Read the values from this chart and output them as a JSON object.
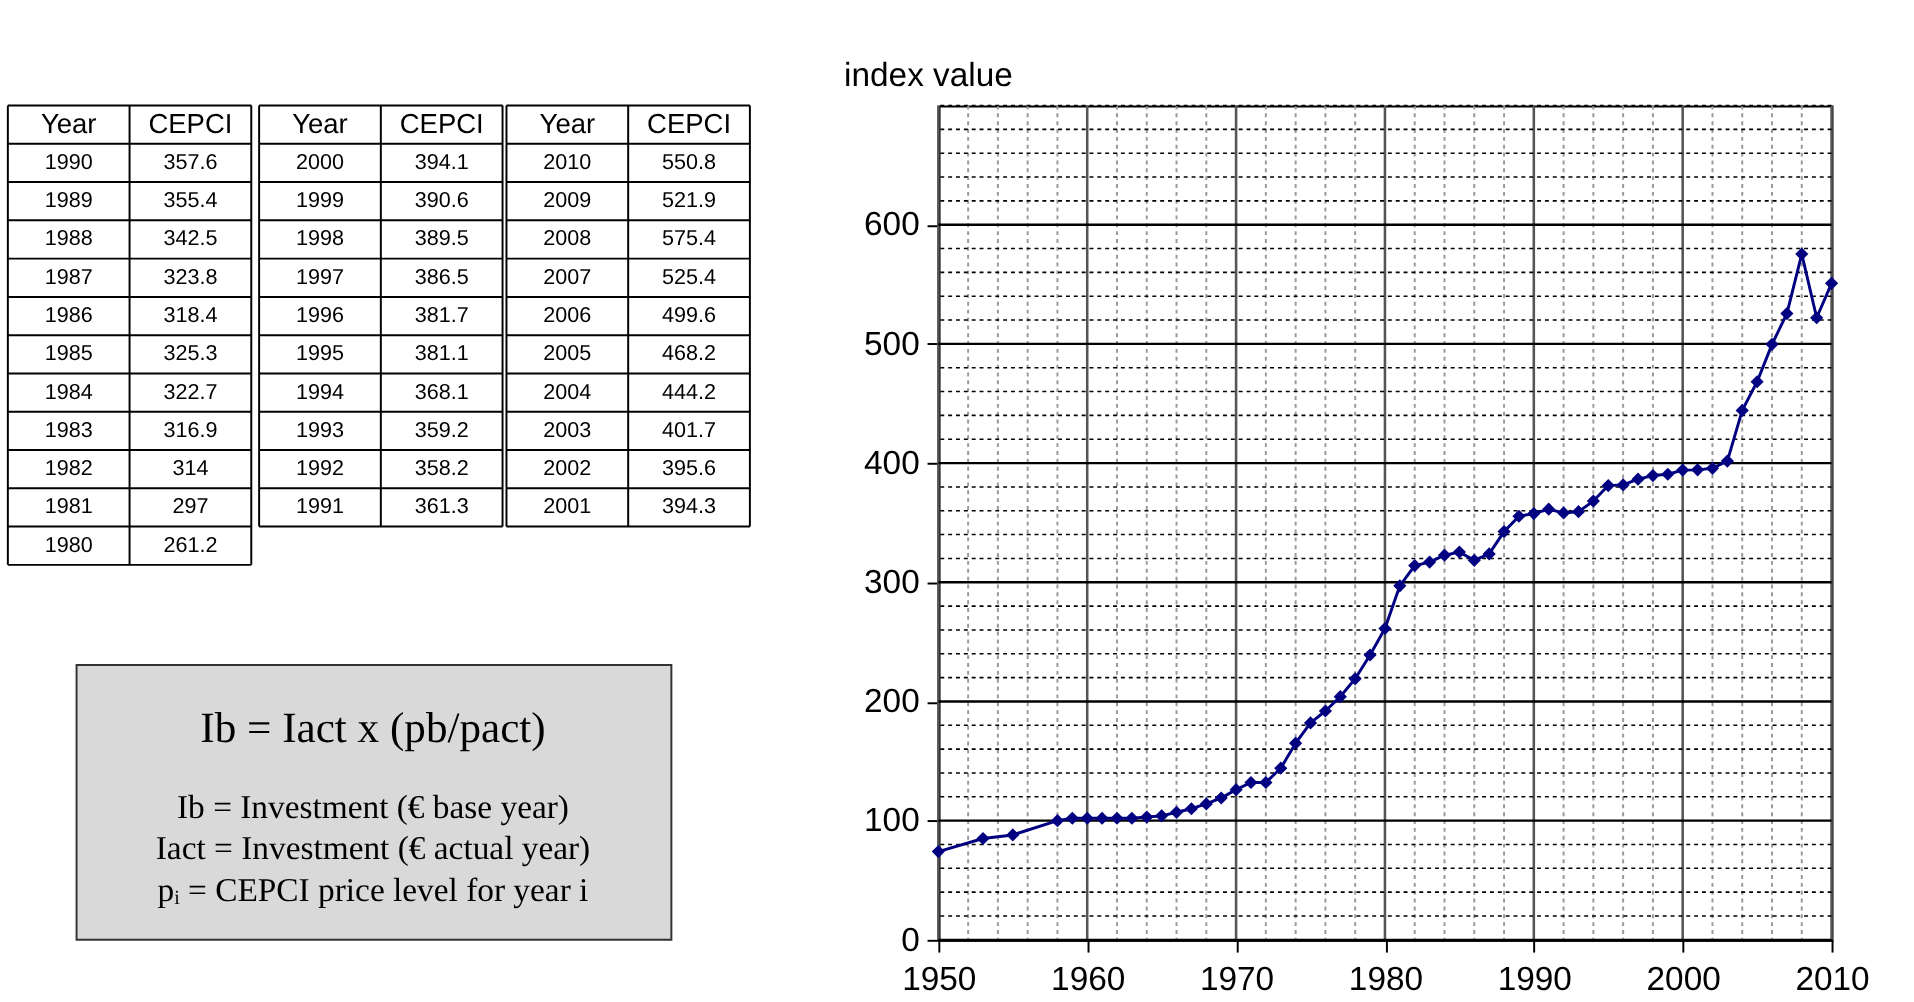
{
  "chart_data": {
    "type": "line",
    "ylabel": "index value",
    "x": [
      1950,
      1953,
      1955,
      1958,
      1959,
      1960,
      1961,
      1962,
      1963,
      1964,
      1965,
      1966,
      1967,
      1968,
      1969,
      1970,
      1971,
      1972,
      1973,
      1974,
      1975,
      1976,
      1977,
      1978,
      1979,
      1980,
      1981,
      1982,
      1983,
      1984,
      1985,
      1986,
      1987,
      1988,
      1989,
      1990,
      1991,
      1992,
      1993,
      1994,
      1995,
      1996,
      1997,
      1998,
      1999,
      2000,
      2001,
      2002,
      2003,
      2004,
      2005,
      2006,
      2007,
      2008,
      2009,
      2010
    ],
    "series": [
      {
        "color": "#000080",
        "values": [
          74,
          85,
          88,
          100,
          102,
          102,
          102,
          102,
          102,
          103,
          104,
          107,
          110,
          114,
          119,
          126,
          132,
          132,
          144,
          165,
          182,
          192,
          204,
          219,
          239,
          261.2,
          297,
          314,
          316.9,
          322.7,
          325.3,
          318.4,
          323.8,
          342.5,
          355.4,
          357.6,
          361.3,
          358.2,
          359.2,
          368.1,
          381.1,
          381.7,
          386.5,
          389.5,
          390.6,
          394.1,
          394.3,
          395.6,
          401.7,
          444.2,
          468.2,
          499.6,
          525.4,
          575.4,
          521.9,
          550.8
        ]
      }
    ],
    "xlim": [
      1950,
      2010
    ],
    "xticks": [
      1950,
      {
        "value": 1952,
        "label": null
      },
      {
        "value": 1954,
        "label": null
      },
      {
        "value": 1956,
        "label": null
      },
      {
        "value": 1958,
        "label": null
      },
      1960,
      {
        "value": 1962,
        "label": null
      },
      {
        "value": 1964,
        "label": null
      },
      {
        "value": 1966,
        "label": null
      },
      {
        "value": 1968,
        "label": null
      },
      1970,
      {
        "value": 1972,
        "label": null
      },
      {
        "value": 1974,
        "label": null
      },
      {
        "value": 1976,
        "label": null
      },
      {
        "value": 1978,
        "label": null
      },
      1980,
      {
        "value": 1982,
        "label": null
      },
      {
        "value": 1984,
        "label": null
      },
      {
        "value": 1986,
        "label": null
      },
      {
        "value": 1988,
        "label": null
      },
      1990,
      {
        "value": 1992,
        "label": null
      },
      {
        "value": 1994,
        "label": null
      },
      {
        "value": 1996,
        "label": null
      },
      {
        "value": 1998,
        "label": null
      },
      2000,
      {
        "value": 2002,
        "label": null
      },
      {
        "value": 2004,
        "label": null
      },
      {
        "value": 2006,
        "label": null
      },
      {
        "value": 2008,
        "label": null
      },
      2010
    ],
    "ylim": [
      0,
      700
    ],
    "yticks": [
      0,
      {
        "value": 20,
        "label": null
      },
      {
        "value": 40,
        "label": null
      },
      {
        "value": 60,
        "label": null
      },
      {
        "value": 80,
        "label": null
      },
      100,
      {
        "value": 120,
        "label": null
      },
      {
        "value": 140,
        "label": null
      },
      {
        "value": 160,
        "label": null
      },
      {
        "value": 180,
        "label": null
      },
      200,
      {
        "value": 220,
        "label": null
      },
      {
        "value": 240,
        "label": null
      },
      {
        "value": 260,
        "label": null
      },
      {
        "value": 280,
        "label": null
      },
      300,
      {
        "value": 320,
        "label": null
      },
      {
        "value": 340,
        "label": null
      },
      {
        "value": 360,
        "label": null
      },
      {
        "value": 380,
        "label": null
      },
      400,
      {
        "value": 420,
        "label": null
      },
      {
        "value": 440,
        "label": null
      },
      {
        "value": 460,
        "label": null
      },
      {
        "value": 480,
        "label": null
      },
      500,
      {
        "value": 520,
        "label": null
      },
      {
        "value": 540,
        "label": null
      },
      {
        "value": 560,
        "label": null
      },
      {
        "value": 580,
        "label": null
      },
      600,
      {
        "value": 620,
        "label": null
      },
      {
        "value": 640,
        "label": null
      },
      {
        "value": 660,
        "label": null
      },
      {
        "value": 680,
        "label": null
      },
      {
        "value": 700,
        "label": null
      }
    ],
    "grid": true,
    "marker": "diamond",
    "line_style": "solid",
    "annotations": [
      "Year",
      "CEPCI",
      "Year",
      "CEPCI",
      "Year",
      "CEPCI",
      "1990",
      "357.6",
      "1989",
      "355.4",
      "1988",
      "342.5",
      "1987",
      "323.8",
      "1986",
      "318.4",
      "1985",
      "325.3",
      "1984",
      "322.7",
      "1983",
      "316.9",
      "1982",
      "314",
      "1981",
      "297",
      "1980",
      "261.2",
      "2000",
      "394.1",
      "1999",
      "390.6",
      "1998",
      "389.5",
      "1997",
      "386.5",
      "1996",
      "381.7",
      "1995",
      "381.1",
      "1994",
      "368.1",
      "1993",
      "359.2",
      "1992",
      "358.2",
      "1991",
      "361.3",
      "2010",
      "550.8",
      "2009",
      "521.9",
      "2008",
      "575.4",
      "2007",
      "525.4",
      "2006",
      "499.6",
      "2005",
      "468.2",
      "2004",
      "444.2",
      "2003",
      "401.7",
      "2002",
      "395.6",
      "2001",
      "394.3",
      "Ib = Iact  x  (pb/pact)",
      "Ib = Investment (€ base year)",
      "Iact = Investment (€ actual year)",
      "pᵢ = CEPCI price level for year i"
    ]
  }
}
